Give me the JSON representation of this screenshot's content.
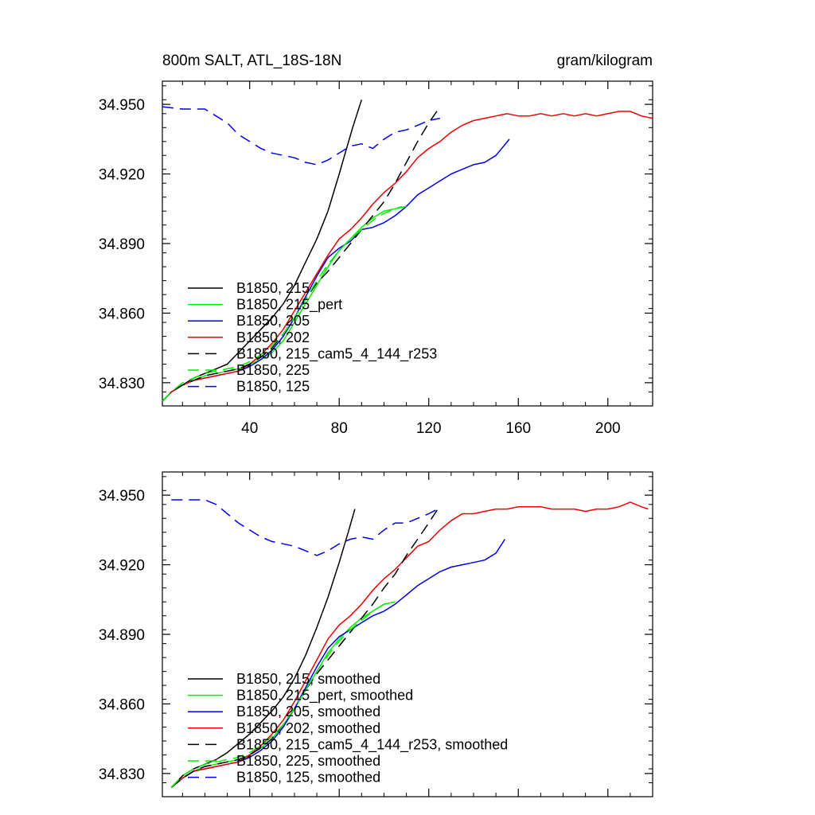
{
  "figure": {
    "title_left": "800m SALT, ATL_18S-18N",
    "title_right": "gram/kilogram"
  },
  "colors": {
    "black": "#000000",
    "green": "#00ee00",
    "blue": "#0000ee",
    "red": "#ee0000"
  },
  "chart_data": [
    {
      "type": "line",
      "title": "800m SALT, ATL_18S-18N",
      "units": "gram/kilogram",
      "xlim": [
        1,
        220
      ],
      "ylim": [
        34.82,
        34.96
      ],
      "xticks": [
        40,
        80,
        120,
        160,
        200
      ],
      "yticks": [
        34.83,
        34.86,
        34.89,
        34.92,
        34.95
      ],
      "ytick_labels": [
        "34.830",
        "34.860",
        "34.890",
        "34.920",
        "34.950"
      ],
      "series": [
        {
          "name": "B1850, 215",
          "color": "black",
          "dash": "solid",
          "x": [
            1,
            5,
            10,
            15,
            20,
            25,
            30,
            35,
            40,
            45,
            50,
            55,
            60,
            65,
            70,
            75,
            80,
            83,
            86,
            88,
            90
          ],
          "y": [
            34.822,
            34.826,
            34.829,
            34.832,
            34.834,
            34.836,
            34.838,
            34.843,
            34.848,
            34.853,
            34.858,
            34.864,
            34.872,
            34.882,
            34.892,
            34.904,
            34.92,
            34.93,
            34.94,
            34.946,
            34.952
          ]
        },
        {
          "name": "B1850, 215_pert",
          "color": "green",
          "dash": "solid",
          "x": [
            1,
            5,
            10,
            15,
            20,
            25,
            30,
            35,
            40,
            45,
            50,
            55,
            60,
            65,
            70,
            75,
            80,
            85,
            90,
            95,
            100,
            105,
            108
          ],
          "y": [
            34.822,
            34.826,
            34.829,
            34.831,
            34.833,
            34.834,
            34.835,
            34.836,
            34.838,
            34.84,
            34.843,
            34.848,
            34.856,
            34.864,
            34.872,
            34.88,
            34.887,
            34.892,
            34.897,
            34.901,
            34.904,
            34.905,
            34.906
          ]
        },
        {
          "name": "B1850, 205",
          "color": "blue",
          "dash": "solid",
          "x": [
            1,
            5,
            10,
            15,
            20,
            25,
            30,
            35,
            40,
            45,
            50,
            55,
            60,
            65,
            70,
            75,
            80,
            85,
            90,
            95,
            100,
            105,
            110,
            115,
            120,
            125,
            130,
            135,
            140,
            145,
            150,
            156
          ],
          "y": [
            34.822,
            34.826,
            34.829,
            34.831,
            34.832,
            34.833,
            34.834,
            34.835,
            34.837,
            34.84,
            34.844,
            34.85,
            34.858,
            34.867,
            34.876,
            34.884,
            34.888,
            34.891,
            34.896,
            34.897,
            34.899,
            34.902,
            34.906,
            34.911,
            34.914,
            34.917,
            34.92,
            34.922,
            34.924,
            34.925,
            34.928,
            34.935
          ]
        },
        {
          "name": "B1850, 202",
          "color": "red",
          "dash": "solid",
          "x": [
            1,
            5,
            10,
            15,
            20,
            25,
            30,
            35,
            40,
            45,
            50,
            55,
            60,
            65,
            70,
            75,
            80,
            85,
            90,
            95,
            100,
            105,
            110,
            115,
            120,
            125,
            130,
            135,
            140,
            145,
            150,
            155,
            160,
            165,
            170,
            175,
            180,
            185,
            190,
            195,
            200,
            205,
            210,
            215,
            220
          ],
          "y": [
            34.822,
            34.826,
            34.829,
            34.831,
            34.832,
            34.833,
            34.834,
            34.835,
            34.838,
            34.842,
            34.847,
            34.853,
            34.861,
            34.869,
            34.877,
            34.885,
            34.892,
            34.896,
            34.901,
            34.907,
            34.912,
            34.916,
            34.921,
            34.927,
            34.931,
            34.934,
            34.938,
            34.941,
            34.943,
            34.944,
            34.945,
            34.946,
            34.945,
            34.945,
            34.946,
            34.945,
            34.946,
            34.945,
            34.946,
            34.945,
            34.946,
            34.947,
            34.947,
            34.945,
            34.944
          ]
        },
        {
          "name": "B1850, 215_cam5_4_144_r253",
          "color": "black",
          "dash": "long",
          "x": [
            1,
            5,
            10,
            15,
            20,
            25,
            30,
            35,
            40,
            45,
            50,
            55,
            60,
            65,
            70,
            75,
            80,
            85,
            90,
            95,
            100,
            105,
            110,
            115,
            120,
            125
          ],
          "y": [
            34.822,
            34.826,
            34.829,
            34.831,
            34.833,
            34.834,
            34.835,
            34.836,
            34.838,
            34.841,
            34.845,
            34.851,
            34.858,
            34.866,
            34.873,
            34.878,
            34.884,
            34.89,
            34.896,
            34.902,
            34.908,
            34.916,
            34.925,
            34.934,
            34.942,
            34.949
          ]
        },
        {
          "name": "B1850, 225",
          "color": "green",
          "dash": "long",
          "x": [
            1,
            5,
            10,
            15,
            20,
            25,
            30,
            35,
            40,
            45,
            50,
            55,
            60,
            65,
            70,
            75,
            80,
            85,
            90,
            95,
            100,
            105,
            110
          ],
          "y": [
            34.822,
            34.826,
            34.83,
            34.832,
            34.834,
            34.835,
            34.836,
            34.837,
            34.839,
            34.842,
            34.846,
            34.851,
            34.858,
            34.866,
            34.874,
            34.881,
            34.887,
            34.892,
            34.896,
            34.9,
            34.903,
            34.905,
            34.906
          ]
        },
        {
          "name": "B1850, 125",
          "color": "blue",
          "dash": "long",
          "x": [
            1,
            10,
            20,
            30,
            35,
            40,
            45,
            50,
            55,
            60,
            65,
            70,
            75,
            80,
            85,
            90,
            95,
            100,
            105,
            110,
            115,
            120,
            125
          ],
          "y": [
            34.949,
            34.948,
            34.948,
            34.942,
            34.937,
            34.934,
            34.931,
            34.929,
            34.928,
            34.927,
            34.925,
            34.924,
            34.926,
            34.929,
            34.932,
            34.933,
            34.931,
            34.935,
            34.938,
            34.939,
            34.941,
            34.943,
            34.944
          ]
        }
      ]
    },
    {
      "type": "line",
      "title": "",
      "xlim": [
        1,
        220
      ],
      "ylim": [
        34.82,
        34.96
      ],
      "xticks": [
        40,
        80,
        120,
        160,
        200
      ],
      "yticks": [
        34.83,
        34.86,
        34.89,
        34.92,
        34.95
      ],
      "ytick_labels": [
        "34.830",
        "34.860",
        "34.890",
        "34.920",
        "34.950"
      ],
      "series": [
        {
          "name": "B1850, 215, smoothed",
          "color": "black",
          "dash": "solid",
          "x": [
            5,
            10,
            15,
            20,
            25,
            30,
            35,
            40,
            45,
            50,
            55,
            60,
            65,
            70,
            75,
            80,
            84,
            87
          ],
          "y": [
            34.824,
            34.829,
            34.832,
            34.834,
            34.836,
            34.839,
            34.843,
            34.847,
            34.852,
            34.857,
            34.863,
            34.871,
            34.881,
            34.893,
            34.906,
            34.921,
            34.934,
            34.944
          ]
        },
        {
          "name": "B1850, 215_pert, smoothed",
          "color": "green",
          "dash": "solid",
          "x": [
            5,
            10,
            15,
            20,
            25,
            30,
            35,
            40,
            45,
            50,
            55,
            60,
            65,
            70,
            75,
            80,
            85,
            90,
            95,
            100,
            105
          ],
          "y": [
            34.824,
            34.828,
            34.831,
            34.833,
            34.834,
            34.835,
            34.836,
            34.838,
            34.841,
            34.845,
            34.851,
            34.858,
            34.866,
            34.874,
            34.882,
            34.888,
            34.893,
            34.897,
            34.9,
            34.903,
            34.904
          ]
        },
        {
          "name": "B1850, 205, smoothed",
          "color": "blue",
          "dash": "solid",
          "x": [
            5,
            10,
            15,
            20,
            25,
            30,
            35,
            40,
            45,
            50,
            55,
            60,
            65,
            70,
            75,
            80,
            85,
            90,
            95,
            100,
            105,
            110,
            115,
            120,
            125,
            130,
            135,
            140,
            145,
            150,
            154
          ],
          "y": [
            34.824,
            34.828,
            34.831,
            34.832,
            34.833,
            34.834,
            34.835,
            34.837,
            34.84,
            34.844,
            34.85,
            34.858,
            34.867,
            34.876,
            34.884,
            34.889,
            34.892,
            34.895,
            34.898,
            34.9,
            34.903,
            34.907,
            34.911,
            34.914,
            34.917,
            34.919,
            34.92,
            34.921,
            34.922,
            34.925,
            34.931
          ]
        },
        {
          "name": "B1850, 202, smoothed",
          "color": "red",
          "dash": "solid",
          "x": [
            5,
            10,
            15,
            20,
            25,
            30,
            35,
            40,
            45,
            50,
            55,
            60,
            65,
            70,
            75,
            80,
            85,
            90,
            95,
            100,
            105,
            110,
            115,
            120,
            125,
            130,
            135,
            140,
            145,
            150,
            155,
            160,
            165,
            170,
            175,
            180,
            185,
            190,
            195,
            200,
            205,
            210,
            215,
            218
          ],
          "y": [
            34.824,
            34.828,
            34.831,
            34.832,
            34.833,
            34.834,
            34.835,
            34.838,
            34.842,
            34.847,
            34.853,
            34.861,
            34.87,
            34.879,
            34.888,
            34.894,
            34.898,
            34.903,
            34.909,
            34.914,
            34.918,
            34.923,
            34.928,
            34.93,
            34.935,
            34.939,
            34.942,
            34.942,
            34.943,
            34.944,
            34.944,
            34.945,
            34.945,
            34.945,
            34.944,
            34.944,
            34.944,
            34.943,
            34.944,
            34.944,
            34.945,
            34.947,
            34.945,
            34.944
          ]
        },
        {
          "name": "B1850, 215_cam5_4_144_r253, smoothed",
          "color": "black",
          "dash": "long",
          "x": [
            5,
            10,
            15,
            20,
            25,
            30,
            35,
            40,
            45,
            50,
            55,
            60,
            65,
            70,
            75,
            80,
            85,
            90,
            95,
            100,
            105,
            110,
            115,
            120,
            124
          ],
          "y": [
            34.824,
            34.828,
            34.831,
            34.833,
            34.834,
            34.835,
            34.836,
            34.838,
            34.841,
            34.845,
            34.851,
            34.858,
            34.866,
            34.873,
            34.879,
            34.885,
            34.891,
            34.897,
            34.903,
            34.91,
            34.916,
            34.924,
            34.931,
            34.938,
            34.944
          ]
        },
        {
          "name": "B1850, 225, smoothed",
          "color": "green",
          "dash": "long",
          "x": [
            5,
            10,
            15,
            20,
            25,
            30,
            35,
            40,
            45,
            50,
            55,
            60,
            65,
            70,
            75,
            80,
            85,
            90,
            95,
            100,
            105
          ],
          "y": [
            34.824,
            34.829,
            34.832,
            34.834,
            34.835,
            34.836,
            34.837,
            34.839,
            34.842,
            34.846,
            34.851,
            34.858,
            34.866,
            34.874,
            34.881,
            34.887,
            34.892,
            34.896,
            34.9,
            34.903,
            34.904
          ]
        },
        {
          "name": "B1850, 125, smoothed",
          "color": "blue",
          "dash": "long",
          "x": [
            5,
            10,
            20,
            25,
            30,
            35,
            40,
            45,
            50,
            55,
            60,
            65,
            70,
            75,
            80,
            85,
            90,
            95,
            100,
            105,
            110,
            115,
            120,
            124
          ],
          "y": [
            34.948,
            34.948,
            34.948,
            34.946,
            34.942,
            34.938,
            34.935,
            34.932,
            34.93,
            34.929,
            34.928,
            34.926,
            34.924,
            34.926,
            34.929,
            34.931,
            34.932,
            34.931,
            34.935,
            34.938,
            34.938,
            34.94,
            34.942,
            34.944
          ]
        }
      ]
    }
  ]
}
